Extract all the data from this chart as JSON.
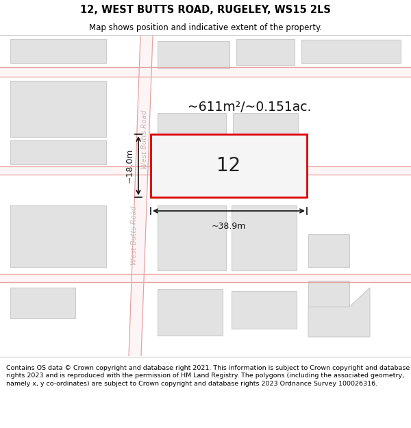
{
  "title": "12, WEST BUTTS ROAD, RUGELEY, WS15 2LS",
  "subtitle": "Map shows position and indicative extent of the property.",
  "footer": "Contains OS data © Crown copyright and database right 2021. This information is subject to Crown copyright and database rights 2023 and is reproduced with the permission of HM Land Registry. The polygons (including the associated geometry, namely x, y co-ordinates) are subject to Crown copyright and database rights 2023 Ordnance Survey 100026316.",
  "background_color": "#ffffff",
  "road_fill": "#fdf5f5",
  "road_edge": "#e8a0a0",
  "building_fill": "#e2e2e2",
  "building_edge": "#cccccc",
  "highlight_fill": "#f5f5f5",
  "highlight_edge": "#dd0000",
  "road_label_color": "#c8b8b8",
  "dim_color": "#111111",
  "area_text": "~611m²/~0.151ac.",
  "number_text": "12",
  "dim_width": "~38.9m",
  "dim_height": "~18.0m",
  "road_name": "West Butts Road",
  "title_fontsize": 10.5,
  "subtitle_fontsize": 8.5,
  "footer_fontsize": 6.8
}
